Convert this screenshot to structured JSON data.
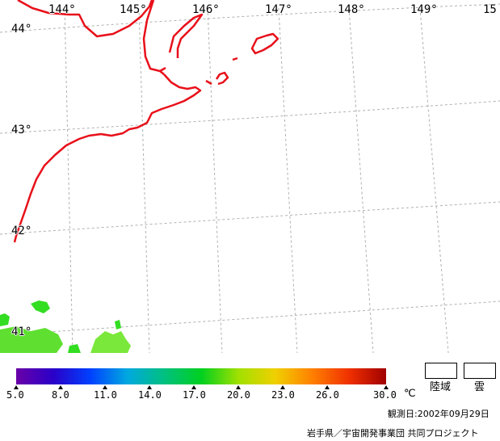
{
  "map": {
    "lon_labels": [
      "144°",
      "145°",
      "146°",
      "147°",
      "148°",
      "149°",
      "15"
    ],
    "lat_labels": [
      "44°",
      "43°",
      "42°",
      "41°"
    ],
    "coastline_color": "#e8101a",
    "grid_color": "#b0b0b0",
    "land_sst_color": "#33dd22"
  },
  "colorbar": {
    "ticks": [
      "5.0",
      "8.0",
      "11.0",
      "14.0",
      "17.0",
      "20.0",
      "23.0",
      "26.0",
      "30.0"
    ],
    "unit": "℃",
    "colors": [
      "#6a00a8",
      "#2a00c8",
      "#0040ff",
      "#00a8e0",
      "#00c080",
      "#00d020",
      "#a0e000",
      "#f0d000",
      "#ff8000",
      "#f03000",
      "#a00000"
    ]
  },
  "legend": {
    "land_label": "陸域",
    "cloud_label": "雲"
  },
  "footer": {
    "observation_date": "観測日:2002年09月29日",
    "credit": "岩手県／宇宙開発事業団 共同プロジェクト"
  }
}
